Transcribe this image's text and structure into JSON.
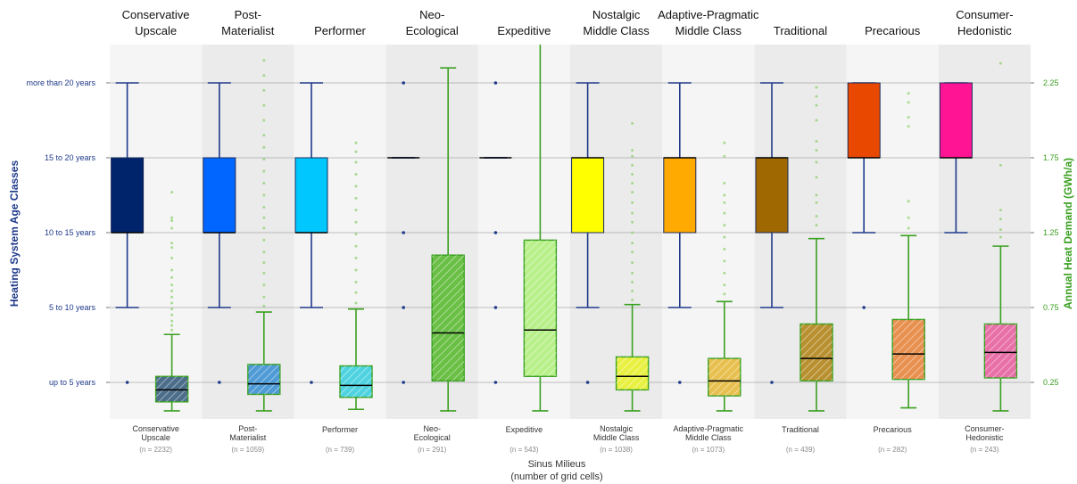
{
  "chart_data": {
    "type": "box",
    "xlabel": "Sinus Milieus",
    "xlabel_sub": "(number of grid cells)",
    "ylabel_left": "Heating System Age Classes",
    "ylabel_right": "Annual Heat Demand (GWh/a)",
    "left_axis_ticks": [
      "up to 5 years",
      "5 to 10 years",
      "10 to 15 years",
      "15 to 20 years",
      "more than 20 years"
    ],
    "right_axis_ticks": [
      "0.25",
      "0.75",
      "1.25",
      "1.75",
      "2.25"
    ],
    "right_ylim": [
      0.25,
      2.25
    ],
    "colors": {
      "left_series": "#1f3a8a",
      "right_series": "#3aa020",
      "grid": "#aaaaaa"
    },
    "categories": [
      {
        "top": [
          "Conservative",
          "Upscale"
        ],
        "bottom": [
          "Conservative",
          "Upscale"
        ],
        "n": "(n = 2232)",
        "box_color": "#00246b",
        "age": {
          "wl": 1,
          "q1": 2,
          "med": 2,
          "q3": 3,
          "wh": 4,
          "outliers": [
            0
          ]
        },
        "heat": {
          "wl": 0.06,
          "q1": 0.12,
          "med": 0.2,
          "q3": 0.29,
          "wh": 0.57,
          "fill": "#4d6e8a",
          "outliers": [
            0.6,
            0.63,
            0.66,
            0.7,
            0.74,
            0.78,
            0.82,
            0.86,
            0.9,
            0.95,
            1.0,
            1.08,
            1.15,
            1.18,
            1.28,
            1.33,
            1.35,
            1.52
          ]
        }
      },
      {
        "top": [
          "Post-",
          "Materialist"
        ],
        "bottom": [
          "Post-",
          "Materialist"
        ],
        "n": "(n = 1059)",
        "box_color": "#0066ff",
        "age": {
          "wl": 1,
          "q1": 2,
          "med": 2,
          "q3": 3,
          "wh": 4,
          "outliers": [
            0
          ]
        },
        "heat": {
          "wl": 0.06,
          "q1": 0.17,
          "med": 0.24,
          "q3": 0.37,
          "wh": 0.72,
          "fill": "#4f9bd6",
          "outliers": [
            0.76,
            0.82,
            0.9,
            0.98,
            1.05,
            1.12,
            1.2,
            1.28,
            1.35,
            1.42,
            1.5,
            1.58,
            1.66,
            1.74,
            1.82,
            1.9,
            2.0,
            2.1,
            2.2,
            2.3,
            2.4
          ]
        }
      },
      {
        "top": [
          "Performer"
        ],
        "bottom": [
          "Performer"
        ],
        "n": "(n = 739)",
        "box_color": "#00c8ff",
        "age": {
          "wl": 1,
          "q1": 2,
          "med": 2,
          "q3": 3,
          "wh": 4,
          "outliers": [
            0
          ]
        },
        "heat": {
          "wl": 0.07,
          "q1": 0.15,
          "med": 0.23,
          "q3": 0.36,
          "wh": 0.74,
          "fill": "#4fd3e0",
          "outliers": [
            0.78,
            0.85,
            0.92,
            1.0,
            1.08,
            1.16,
            1.24,
            1.32,
            1.4,
            1.48,
            1.56,
            1.64,
            1.72,
            1.79,
            1.85
          ]
        }
      },
      {
        "top": [
          "Neo-",
          "Ecological"
        ],
        "bottom": [
          "Neo-",
          "Ecological"
        ],
        "n": "(n = 291)",
        "box_color": "#000000",
        "age": {
          "wl": 3,
          "q1": 3,
          "med": 3,
          "q3": 3,
          "wh": 3,
          "outliers": [
            0,
            1,
            2,
            4
          ]
        },
        "heat": {
          "wl": 0.06,
          "q1": 0.26,
          "med": 0.58,
          "q3": 1.1,
          "wh": 2.35,
          "fill": "#6abf45",
          "outliers": []
        }
      },
      {
        "top": [
          "Expeditive"
        ],
        "bottom": [
          "Expeditive"
        ],
        "n": "(n = 543)",
        "box_color": "#000000",
        "age": {
          "wl": 3,
          "q1": 3,
          "med": 3,
          "q3": 3,
          "wh": 3,
          "outliers": [
            0,
            1,
            2,
            4
          ]
        },
        "heat": {
          "wl": 0.06,
          "q1": 0.29,
          "med": 0.6,
          "q3": 1.2,
          "wh": 2.75,
          "fill": "#b8f08a",
          "outliers": []
        }
      },
      {
        "top": [
          "Nostalgic",
          "Middle Class"
        ],
        "bottom": [
          "Nostalgic",
          "Middle Class"
        ],
        "n": "(n = 1038)",
        "box_color": "#ffff00",
        "age": {
          "wl": 1,
          "q1": 2,
          "med": 3,
          "q3": 3,
          "wh": 4,
          "outliers": [
            0
          ]
        },
        "heat": {
          "wl": 0.06,
          "q1": 0.2,
          "med": 0.29,
          "q3": 0.42,
          "wh": 0.77,
          "fill": "#e8f040",
          "outliers": [
            0.8,
            0.86,
            0.92,
            0.98,
            1.05,
            1.12,
            1.18,
            1.25,
            1.32,
            1.38,
            1.45,
            1.52,
            1.58,
            1.64,
            1.7,
            1.76,
            1.8,
            1.98
          ]
        }
      },
      {
        "top": [
          "Adaptive-Pragmatic",
          "Middle Class"
        ],
        "bottom": [
          "Adaptive-Pragmatic",
          "Middle Class"
        ],
        "n": "(n = 1073)",
        "box_color": "#ffaa00",
        "age": {
          "wl": 1,
          "q1": 2,
          "med": 3,
          "q3": 3,
          "wh": 4,
          "outliers": [
            0
          ]
        },
        "heat": {
          "wl": 0.06,
          "q1": 0.16,
          "med": 0.26,
          "q3": 0.41,
          "wh": 0.79,
          "fill": "#e8c050",
          "outliers": [
            0.84,
            0.9,
            0.98,
            1.06,
            1.14,
            1.22,
            1.3,
            1.38,
            1.45,
            1.5,
            1.58,
            1.76,
            1.85
          ]
        }
      },
      {
        "top": [
          "Traditional"
        ],
        "bottom": [
          "Traditional"
        ],
        "n": "(n = 439)",
        "box_color": "#a06800",
        "age": {
          "wl": 1,
          "q1": 2,
          "med": 3,
          "q3": 3,
          "wh": 4,
          "outliers": [
            0
          ]
        },
        "heat": {
          "wl": 0.06,
          "q1": 0.26,
          "med": 0.41,
          "q3": 0.64,
          "wh": 1.21,
          "fill": "#b89030",
          "outliers": [
            1.3,
            1.36,
            1.45,
            1.5,
            1.62,
            1.72,
            1.8,
            1.86,
            2.0,
            2.1,
            2.16,
            2.22
          ]
        }
      },
      {
        "top": [
          "Precarious"
        ],
        "bottom": [
          "Precarious"
        ],
        "n": "(n = 282)",
        "box_color": "#e84800",
        "age": {
          "wl": 2,
          "q1": 3,
          "med": 3,
          "q3": 4,
          "wh": 4,
          "outliers": [
            1
          ]
        },
        "heat": {
          "wl": 0.08,
          "q1": 0.27,
          "med": 0.44,
          "q3": 0.67,
          "wh": 1.23,
          "fill": "#e89050",
          "outliers": [
            1.28,
            1.35,
            1.46,
            1.96,
            2.02,
            2.12,
            2.18
          ]
        }
      },
      {
        "top": [
          "Consumer-",
          "Hedonistic"
        ],
        "bottom": [
          "Consumer-",
          "Hedonistic"
        ],
        "n": "(n = 243)",
        "box_color": "#ff1493",
        "age": {
          "wl": 2,
          "q1": 3,
          "med": 3,
          "q3": 4,
          "wh": 4,
          "outliers": []
        },
        "heat": {
          "wl": 0.06,
          "q1": 0.28,
          "med": 0.45,
          "q3": 0.64,
          "wh": 1.16,
          "fill": "#e870a8",
          "outliers": [
            1.22,
            1.27,
            1.34,
            1.4,
            1.7,
            2.38
          ]
        }
      }
    ]
  }
}
